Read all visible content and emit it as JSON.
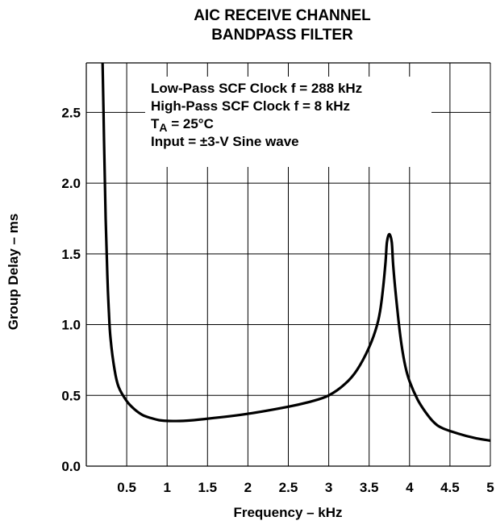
{
  "title": {
    "line1": "AIC RECEIVE CHANNEL",
    "line2": "BANDPASS FILTER"
  },
  "annotations": {
    "line1": "Low-Pass SCF Clock f = 288 kHz",
    "line2": "High-Pass SCF Clock f = 8 kHz",
    "temp_symbol": "T",
    "temp_subscript": "A",
    "temp_value": " = 25°C",
    "line4": "Input = ±3-V Sine wave"
  },
  "chart_data": {
    "type": "line",
    "title": "AIC RECEIVE CHANNEL BANDPASS FILTER",
    "xlabel": "Frequency – kHz",
    "ylabel": "Group Delay – ms",
    "xlim": [
      0,
      5
    ],
    "ylim": [
      0,
      2.85
    ],
    "x_ticks": [
      0.5,
      1,
      1.5,
      2,
      2.5,
      3,
      3.5,
      4,
      4.5,
      5
    ],
    "x_tick_labels": [
      "0.5",
      "1",
      "1.5",
      "2",
      "2.5",
      "3",
      "3.5",
      "4",
      "4.5",
      "5"
    ],
    "y_ticks": [
      0.0,
      0.5,
      1.0,
      1.5,
      2.0,
      2.5
    ],
    "y_tick_labels": [
      "0.0",
      "0.5",
      "1.0",
      "1.5",
      "2.0",
      "2.5"
    ],
    "grid": true,
    "series": [
      {
        "x": [
          0.2,
          0.22,
          0.24,
          0.26,
          0.28,
          0.3,
          0.35,
          0.4,
          0.5,
          0.6,
          0.7,
          0.8,
          0.9,
          1.0,
          1.2,
          1.5,
          2.0,
          2.5,
          2.8,
          3.0,
          3.2,
          3.35,
          3.5,
          3.6,
          3.65,
          3.7,
          3.72,
          3.75,
          3.78,
          3.8,
          3.85,
          3.9,
          3.95,
          4.0,
          4.1,
          4.2,
          4.3,
          4.4,
          4.6,
          4.8,
          5.0
        ],
        "y": [
          2.9,
          2.3,
          1.75,
          1.35,
          1.08,
          0.9,
          0.68,
          0.56,
          0.46,
          0.4,
          0.36,
          0.34,
          0.325,
          0.32,
          0.32,
          0.335,
          0.37,
          0.42,
          0.46,
          0.5,
          0.58,
          0.68,
          0.84,
          1.0,
          1.15,
          1.42,
          1.58,
          1.64,
          1.58,
          1.4,
          1.1,
          0.86,
          0.7,
          0.6,
          0.47,
          0.38,
          0.31,
          0.27,
          0.23,
          0.2,
          0.18
        ]
      }
    ]
  },
  "colors": {
    "curve": "#000000",
    "grid": "#000000",
    "background": "#ffffff"
  }
}
